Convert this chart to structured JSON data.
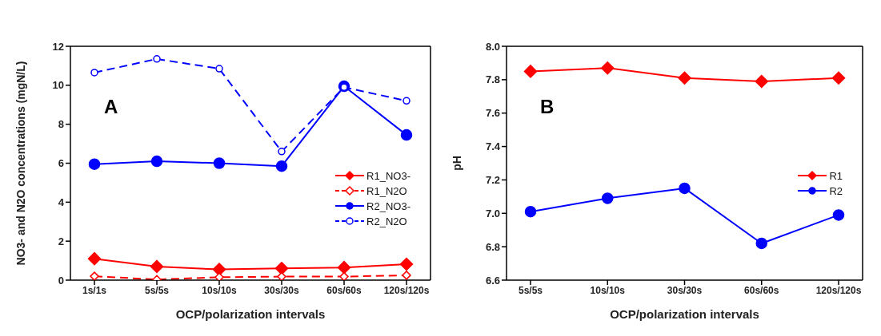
{
  "chart_data": [
    {
      "type": "line",
      "annotations": [
        "A"
      ],
      "xlabel": "OCP/polarization intervals",
      "ylabel": "NO3- and N2O concentrations (mgN/L)",
      "categories": [
        "1s/1s",
        "5s/5s",
        "10s/10s",
        "30s/30s",
        "60s/60s",
        "120s/120s"
      ],
      "series": [
        {
          "name": "R1_NO3-",
          "color": "#ff0000",
          "marker": "diamond",
          "line_style": "solid",
          "values": [
            1.1,
            0.7,
            0.55,
            0.6,
            0.65,
            0.82
          ]
        },
        {
          "name": "R1_N2O",
          "color": "#ff0000",
          "marker": "diamond",
          "line_style": "dashed",
          "values": [
            0.2,
            0.03,
            0.15,
            0.18,
            0.18,
            0.25
          ]
        },
        {
          "name": "R2_NO3-",
          "color": "#0000ff",
          "marker": "circle",
          "line_style": "solid",
          "values": [
            5.95,
            6.1,
            6.0,
            5.85,
            9.95,
            7.45
          ]
        },
        {
          "name": "R2_N2O",
          "color": "#0000ff",
          "marker": "circle",
          "line_style": "dashed",
          "values": [
            10.65,
            11.35,
            10.85,
            6.6,
            9.9,
            9.2
          ]
        }
      ],
      "ylim": [
        0,
        12
      ],
      "yticks": [
        0,
        2,
        4,
        6,
        8,
        10,
        12
      ],
      "grid": false,
      "legend": "right"
    },
    {
      "type": "line",
      "annotations": [
        "B"
      ],
      "xlabel": "OCP/polarization intervals",
      "ylabel": "pH",
      "categories": [
        "5s/5s",
        "10s/10s",
        "30s/30s",
        "60s/60s",
        "120s/120s"
      ],
      "series": [
        {
          "name": "R1",
          "color": "#ff0000",
          "marker": "diamond",
          "line_style": "solid",
          "values": [
            7.85,
            7.87,
            7.81,
            7.79,
            7.81
          ]
        },
        {
          "name": "R2",
          "color": "#0000ff",
          "marker": "circle",
          "line_style": "solid",
          "values": [
            7.01,
            7.09,
            7.15,
            6.82,
            6.99
          ]
        }
      ],
      "ylim": [
        6.6,
        8.0
      ],
      "yticks": [
        6.6,
        6.8,
        {
          "value": 7,
          "label": "7.0"
        },
        7.2,
        7.4,
        7.6,
        7.8,
        {
          "value": 8,
          "label": "8.0"
        }
      ],
      "grid": false,
      "legend": "right"
    }
  ]
}
